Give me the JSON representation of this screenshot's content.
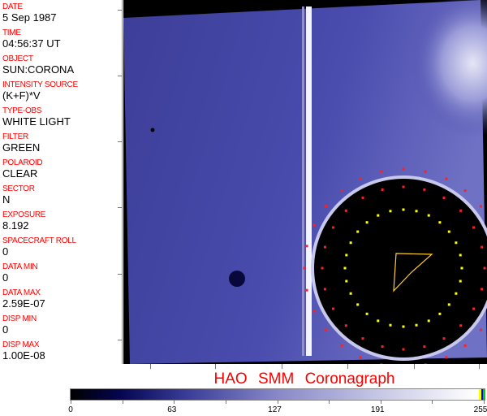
{
  "fields": [
    {
      "label": "DATE",
      "value": "5 Sep 1987"
    },
    {
      "label": "TIME",
      "value": "04:56:37 UT"
    },
    {
      "label": "OBJECT",
      "value": "SUN:CORONA"
    },
    {
      "label": "INTENSITY SOURCE",
      "value": "(K+F)*V"
    },
    {
      "label": "TYPE-OBS",
      "value": "WHITE LIGHT"
    },
    {
      "label": "FILTER",
      "value": "GREEN"
    },
    {
      "label": "POLAROID",
      "value": "CLEAR"
    },
    {
      "label": "SECTOR",
      "value": "N"
    },
    {
      "label": "EXPOSURE",
      "value": "8.192"
    },
    {
      "label": "SPACECRAFT ROLL",
      "value": "0"
    },
    {
      "label": "DATA MIN",
      "value": "0"
    },
    {
      "label": "DATA MAX",
      "value": "2.59E-07"
    },
    {
      "label": "DISP MIN",
      "value": "0"
    },
    {
      "label": "DISP MAX",
      "value": "1.00E-08"
    }
  ],
  "title": "HAO SMM Coronagraph",
  "colorbar": {
    "ticks": [
      "0",
      "63",
      "127",
      "191",
      "255"
    ],
    "min": 0,
    "max": 255
  },
  "colors": {
    "label": "#ff0000",
    "occulter_marks_outer": "#ff2020",
    "occulter_marks_inner": "#ffff00",
    "image_tint": "#4a4ca8"
  }
}
